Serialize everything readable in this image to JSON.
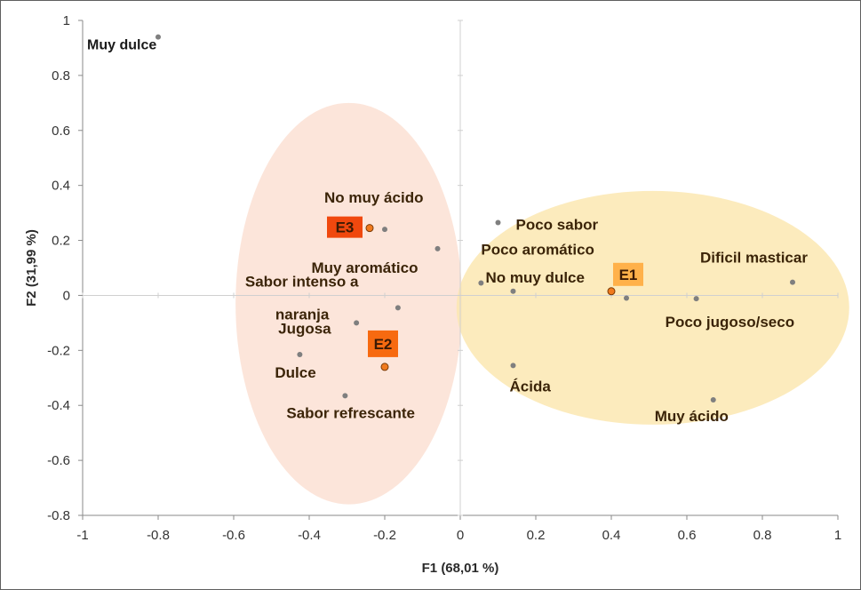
{
  "chart_data": {
    "type": "scatter",
    "xlabel": "F1 (68,01 %)",
    "ylabel": "F2 (31,99 %)",
    "xlim": [
      -1,
      1
    ],
    "ylim": [
      -0.8,
      1
    ],
    "x_ticks": [
      "-1",
      "-0.8",
      "-0.6",
      "-0.4",
      "-0.2",
      "0",
      "0.2",
      "0.4",
      "0.6",
      "0.8",
      "1"
    ],
    "y_ticks": [
      "-0.8",
      "-0.6",
      "-0.4",
      "-0.2",
      "0",
      "0.2",
      "0.4",
      "0.6",
      "0.8",
      "1"
    ],
    "grid": false,
    "colors": {
      "attribute_point": "#7f7f7f",
      "sample_point": "#f07a1e",
      "ellipse_left": "#fbe0d4",
      "ellipse_right": "#fce8b2",
      "label_e1_bg": "#ffb14a",
      "label_e2_bg": "#f76a10",
      "label_e3_bg": "#f0480e",
      "label_text": "#3b2408"
    },
    "attributes": [
      {
        "name": "Muy dulce",
        "x": -0.8,
        "y": 0.94
      },
      {
        "name": "No muy ácido",
        "x": -0.2,
        "y": 0.24
      },
      {
        "name": "Muy aromático",
        "x": -0.06,
        "y": 0.17
      },
      {
        "name": "Sabor intenso a naranja",
        "x": -0.165,
        "y": -0.045
      },
      {
        "name": "Jugosa",
        "x": -0.275,
        "y": -0.1
      },
      {
        "name": "Dulce",
        "x": -0.425,
        "y": -0.215
      },
      {
        "name": "Sabor refrescante",
        "x": -0.305,
        "y": -0.365
      },
      {
        "name": "Poco sabor",
        "x": 0.1,
        "y": 0.265
      },
      {
        "name": "Poco aromático",
        "x": 0.055,
        "y": 0.045
      },
      {
        "name": "No muy dulce",
        "x": 0.14,
        "y": 0.015
      },
      {
        "name": "Ácida",
        "x": 0.14,
        "y": -0.255
      },
      {
        "name": "Dificil masticar",
        "x": 0.88,
        "y": 0.048
      },
      {
        "name": "Poco jugoso/seco",
        "x": 0.625,
        "y": -0.012
      },
      {
        "name": "Muy ácido",
        "x": 0.67,
        "y": -0.38
      },
      {
        "name": "",
        "x": 0.44,
        "y": -0.01
      }
    ],
    "samples": [
      {
        "name": "E1",
        "x": 0.4,
        "y": 0.015
      },
      {
        "name": "E2",
        "x": -0.2,
        "y": -0.26
      },
      {
        "name": "E3",
        "x": -0.24,
        "y": 0.245
      }
    ]
  }
}
